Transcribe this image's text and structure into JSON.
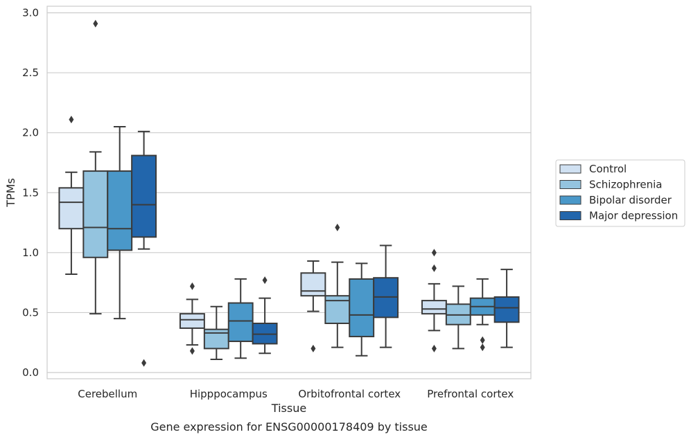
{
  "chart_data": {
    "type": "box",
    "title": "",
    "caption": "Gene expression for ENSG00000178409 by tissue",
    "xlabel": "Tissue",
    "ylabel": "TPMs",
    "ylim": [
      -0.05,
      3.05
    ],
    "yticks": [
      0.0,
      0.5,
      1.0,
      1.5,
      2.0,
      2.5,
      3.0
    ],
    "ytick_labels": [
      "0.0",
      "0.5",
      "1.0",
      "1.5",
      "2.0",
      "2.5",
      "3.0"
    ],
    "grid": "horizontal",
    "legend_position": "right-outside",
    "categories": [
      "Cerebellum",
      "Hipppocampus",
      "Orbitofrontal cortex",
      "Prefrontal cortex"
    ],
    "series": [
      {
        "name": "Control",
        "color": "#d0e1f2",
        "boxes": [
          {
            "whislo": 0.82,
            "q1": 1.2,
            "med": 1.42,
            "q3": 1.54,
            "whishi": 1.67,
            "fliers": [
              2.11
            ]
          },
          {
            "whislo": 0.23,
            "q1": 0.37,
            "med": 0.44,
            "q3": 0.49,
            "whishi": 0.61,
            "fliers": [
              0.72,
              0.18
            ]
          },
          {
            "whislo": 0.51,
            "q1": 0.64,
            "med": 0.68,
            "q3": 0.83,
            "whishi": 0.93,
            "fliers": [
              0.2
            ]
          },
          {
            "whislo": 0.35,
            "q1": 0.49,
            "med": 0.53,
            "q3": 0.6,
            "whishi": 0.74,
            "fliers": [
              1.0,
              0.87,
              0.2
            ]
          }
        ]
      },
      {
        "name": "Schizophrenia",
        "color": "#94c4df",
        "boxes": [
          {
            "whislo": 0.49,
            "q1": 0.96,
            "med": 1.21,
            "q3": 1.68,
            "whishi": 1.84,
            "fliers": [
              2.91
            ]
          },
          {
            "whislo": 0.11,
            "q1": 0.2,
            "med": 0.33,
            "q3": 0.36,
            "whishi": 0.55,
            "fliers": []
          },
          {
            "whislo": 0.21,
            "q1": 0.41,
            "med": 0.6,
            "q3": 0.64,
            "whishi": 0.92,
            "fliers": [
              1.21
            ]
          },
          {
            "whislo": 0.2,
            "q1": 0.4,
            "med": 0.48,
            "q3": 0.57,
            "whishi": 0.72,
            "fliers": []
          }
        ]
      },
      {
        "name": "Bipolar disorder",
        "color": "#4a98c9",
        "boxes": [
          {
            "whislo": 0.45,
            "q1": 1.02,
            "med": 1.2,
            "q3": 1.68,
            "whishi": 2.05,
            "fliers": []
          },
          {
            "whislo": 0.12,
            "q1": 0.26,
            "med": 0.43,
            "q3": 0.58,
            "whishi": 0.78,
            "fliers": []
          },
          {
            "whislo": 0.14,
            "q1": 0.3,
            "med": 0.48,
            "q3": 0.78,
            "whishi": 0.91,
            "fliers": []
          },
          {
            "whislo": 0.4,
            "q1": 0.48,
            "med": 0.55,
            "q3": 0.62,
            "whishi": 0.78,
            "fliers": [
              0.27,
              0.21
            ]
          }
        ]
      },
      {
        "name": "Major depression",
        "color": "#2266ac",
        "boxes": [
          {
            "whislo": 1.03,
            "q1": 1.13,
            "med": 1.4,
            "q3": 1.81,
            "whishi": 2.01,
            "fliers": [
              0.08
            ]
          },
          {
            "whislo": 0.16,
            "q1": 0.24,
            "med": 0.32,
            "q3": 0.41,
            "whishi": 0.62,
            "fliers": [
              0.77
            ]
          },
          {
            "whislo": 0.21,
            "q1": 0.46,
            "med": 0.63,
            "q3": 0.79,
            "whishi": 1.06,
            "fliers": []
          },
          {
            "whislo": 0.21,
            "q1": 0.42,
            "med": 0.54,
            "q3": 0.63,
            "whishi": 0.86,
            "fliers": []
          }
        ]
      }
    ]
  }
}
